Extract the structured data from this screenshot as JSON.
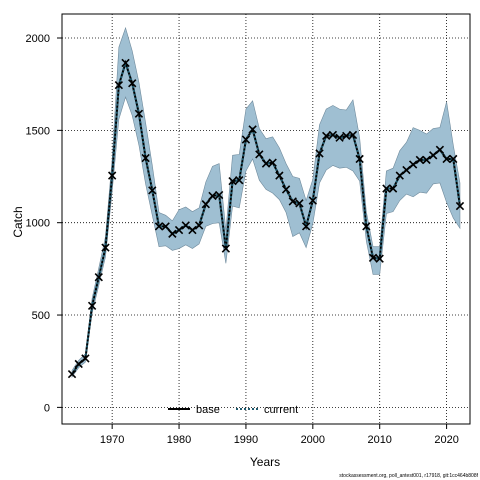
{
  "chart_data": {
    "type": "line",
    "xlabel": "Years",
    "ylabel": "Catch",
    "xlim": [
      1962.5,
      2023.5
    ],
    "ylim": [
      -90,
      2130
    ],
    "x_ticks": [
      1970,
      1980,
      1990,
      2000,
      2010,
      2020
    ],
    "y_ticks": [
      0,
      500,
      1000,
      1500,
      2000
    ],
    "grid": true,
    "legend_position": "bottom-center",
    "band_color": "#9fbfd2",
    "band_edge_color": "#6f8a9c",
    "current_line_color": "#1f5a6e",
    "base_line_color": "#000000",
    "series": [
      {
        "name": "base",
        "style": "solid",
        "x": [
          1964,
          1965,
          1966,
          1967,
          1968,
          1969,
          1970,
          1971,
          1972,
          1973,
          1974,
          1975,
          1976,
          1977,
          1978,
          1979,
          1980,
          1981,
          1982,
          1983,
          1984,
          1985,
          1986,
          1987,
          1988,
          1989,
          1990,
          1991,
          1992,
          1993,
          1994,
          1995,
          1996,
          1997,
          1998,
          1999,
          2000,
          2001,
          2002,
          2003,
          2004,
          2005,
          2006,
          2007,
          2008,
          2009,
          2010,
          2011,
          2012,
          2013,
          2014,
          2015,
          2016,
          2017,
          2018,
          2019,
          2020,
          2021,
          2022
        ],
        "y": [
          180,
          235,
          265,
          550,
          705,
          865,
          1255,
          1745,
          1865,
          1755,
          1590,
          1350,
          1175,
          980,
          980,
          940,
          960,
          985,
          960,
          985,
          1100,
          1145,
          1150,
          860,
          1225,
          1230,
          1450,
          1505,
          1370,
          1320,
          1325,
          1255,
          1180,
          1115,
          1105,
          980,
          1120,
          1375,
          1470,
          1475,
          1460,
          1470,
          1475,
          1345,
          980,
          810,
          805,
          1185,
          1185,
          1255,
          1285,
          1315,
          1340,
          1340,
          1365,
          1395,
          1345,
          1345,
          1090
        ]
      },
      {
        "name": "current",
        "style": "dotted",
        "x": [
          1964,
          1965,
          1966,
          1967,
          1968,
          1969,
          1970,
          1971,
          1972,
          1973,
          1974,
          1975,
          1976,
          1977,
          1978,
          1979,
          1980,
          1981,
          1982,
          1983,
          1984,
          1985,
          1986,
          1987,
          1988,
          1989,
          1990,
          1991,
          1992,
          1993,
          1994,
          1995,
          1996,
          1997,
          1998,
          1999,
          2000,
          2001,
          2002,
          2003,
          2004,
          2005,
          2006,
          2007,
          2008,
          2009,
          2010,
          2011,
          2012,
          2013,
          2014,
          2015,
          2016,
          2017,
          2018,
          2019,
          2020,
          2021,
          2022
        ],
        "y": [
          180,
          235,
          265,
          550,
          705,
          865,
          1255,
          1745,
          1865,
          1755,
          1590,
          1350,
          1175,
          980,
          980,
          940,
          960,
          985,
          960,
          985,
          1100,
          1145,
          1150,
          860,
          1225,
          1230,
          1450,
          1505,
          1370,
          1320,
          1325,
          1255,
          1180,
          1115,
          1105,
          980,
          1120,
          1375,
          1470,
          1475,
          1460,
          1470,
          1475,
          1345,
          980,
          810,
          805,
          1185,
          1185,
          1255,
          1285,
          1315,
          1340,
          1340,
          1365,
          1395,
          1345,
          1345,
          1090
        ],
        "upper": [
          200,
          255,
          290,
          590,
          755,
          925,
          1345,
          1950,
          2055,
          1930,
          1760,
          1540,
          1310,
          1055,
          1040,
          1010,
          1070,
          1085,
          1060,
          1080,
          1220,
          1305,
          1320,
          960,
          1365,
          1370,
          1615,
          1660,
          1510,
          1455,
          1465,
          1405,
          1320,
          1250,
          1240,
          1120,
          1235,
          1530,
          1615,
          1635,
          1615,
          1610,
          1665,
          1460,
          1060,
          870,
          870,
          1280,
          1295,
          1390,
          1435,
          1515,
          1500,
          1480,
          1510,
          1515,
          1655,
          1420,
          1215
        ],
        "lower": [
          165,
          215,
          245,
          510,
          660,
          815,
          1170,
          1560,
          1680,
          1580,
          1420,
          1210,
          1040,
          870,
          875,
          850,
          860,
          880,
          860,
          885,
          980,
          995,
          1000,
          780,
          1090,
          1080,
          1280,
          1345,
          1230,
          1180,
          1160,
          1125,
          1055,
          925,
          945,
          865,
          995,
          1215,
          1285,
          1310,
          1295,
          1300,
          1280,
          1225,
          900,
          720,
          720,
          1050,
          1060,
          1120,
          1155,
          1140,
          1165,
          1160,
          1210,
          1215,
          1110,
          1025,
          970
        ]
      }
    ]
  },
  "footnote": "stockassessment.org, poll_antest001, r17918, git:1cc464b808f"
}
